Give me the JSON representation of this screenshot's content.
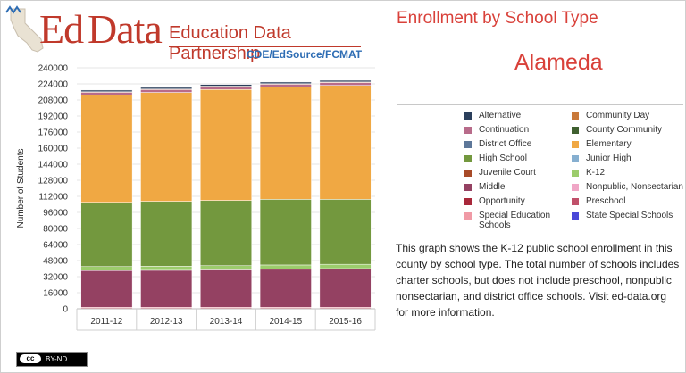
{
  "logo": {
    "ed": "Ed",
    "data": "Data",
    "name": "Education Data Partnership",
    "sub": "CDE/EdSource/FCMAT"
  },
  "title": "Enrollment by School Type",
  "county": "Alameda",
  "description": "This graph shows the K-12 public school enrollment in this county by school type. The total number of schools includes charter schools, but does not include preschool, nonpublic nonsectarian, and district office schools. Visit ed-data.org for more information.",
  "license": {
    "cc": "cc",
    "text": "BY-ND"
  },
  "colors": {
    "Alternative": "#2b3f5c",
    "Community Day": "#c9793a",
    "Continuation": "#b86b8a",
    "County Community": "#3f6030",
    "District Office": "#5d7799",
    "Elementary": "#f0a843",
    "High School": "#73983e",
    "Junior High": "#86afd0",
    "Juvenile Court": "#a84a28",
    "K-12": "#9ccc6c",
    "Middle": "#944162",
    "Nonpublic, Nonsectarian": "#f0a6c6",
    "Opportunity": "#a8283a",
    "Preschool": "#c0506a",
    "Special Education Schools": "#f09aa6",
    "State Special Schools": "#4a48d8"
  },
  "chart_data": {
    "type": "bar",
    "stacked": true,
    "ylabel": "Number of Students",
    "xlabel": "",
    "ylim": [
      0,
      240000
    ],
    "yticks": [
      0,
      16000,
      32000,
      48000,
      64000,
      80000,
      96000,
      112000,
      128000,
      144000,
      160000,
      176000,
      192000,
      208000,
      224000,
      240000
    ],
    "grid": true,
    "legend": "right",
    "categories": [
      "2011-12",
      "2012-13",
      "2013-14",
      "2014-15",
      "2015-16"
    ],
    "legend_entries": [
      "Alternative",
      "Community Day",
      "Continuation",
      "County Community",
      "District Office",
      "Elementary",
      "High School",
      "Junior High",
      "Juvenile Court",
      "K-12",
      "Middle",
      "Nonpublic, Nonsectarian",
      "Opportunity",
      "Preschool",
      "Special Education Schools",
      "State Special Schools"
    ],
    "series": [
      {
        "name": "Special Education Schools",
        "values": [
          1500,
          1500,
          1500,
          1500,
          1500
        ]
      },
      {
        "name": "Middle",
        "values": [
          36500,
          36800,
          37200,
          37800,
          38500
        ]
      },
      {
        "name": "K-12",
        "values": [
          4000,
          4000,
          4200,
          4300,
          4300
        ]
      },
      {
        "name": "High School",
        "values": [
          64000,
          64700,
          65000,
          65400,
          64700
        ]
      },
      {
        "name": "Elementary",
        "values": [
          106800,
          108500,
          110500,
          111800,
          113500
        ]
      },
      {
        "name": "Continuation",
        "values": [
          2800,
          2800,
          2800,
          2800,
          2800
        ]
      },
      {
        "name": "Community Day",
        "values": [
          600,
          600,
          600,
          600,
          600
        ]
      },
      {
        "name": "Alternative",
        "values": [
          1600,
          1600,
          1600,
          1600,
          1600
        ]
      }
    ]
  }
}
